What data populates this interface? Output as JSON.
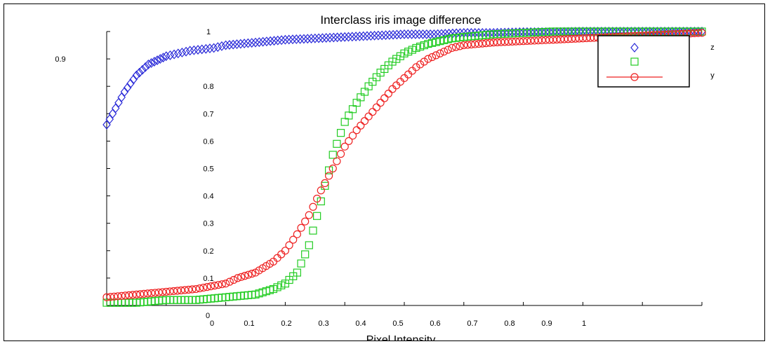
{
  "chart_data": {
    "type": "scatter",
    "title": "Interclass iris image difference",
    "xlabel": "Pixel Intensity",
    "ylabel": "",
    "xlim": [
      0,
      1
    ],
    "ylim": [
      0,
      1
    ],
    "x_ticks": [
      "0",
      "0.1",
      "0.2",
      "0.3",
      "0.4",
      "0.5",
      "0.6",
      "0.7",
      "0.8",
      "0.9",
      "1"
    ],
    "y_ticks": [
      "0",
      "0.1",
      "0.2",
      "0.3",
      "0.4",
      "0.5",
      "0.6",
      "0.7",
      "0.8",
      "0.9",
      "1"
    ],
    "legend_position": "top-right",
    "series": [
      {
        "name": "z",
        "marker": "diamond",
        "color": "#2a2ad8",
        "x": [
          0,
          0.01,
          0.02,
          0.03,
          0.04,
          0.05,
          0.06,
          0.07,
          0.08,
          0.09,
          0.1,
          0.12,
          0.14,
          0.16,
          0.18,
          0.2,
          0.25,
          0.3,
          0.35,
          0.4,
          0.45,
          0.5,
          0.55,
          0.6,
          0.65,
          0.7,
          0.75,
          0.8,
          0.85,
          0.9,
          0.95,
          1.0
        ],
        "y": [
          0.66,
          0.7,
          0.74,
          0.78,
          0.81,
          0.84,
          0.86,
          0.88,
          0.89,
          0.9,
          0.91,
          0.92,
          0.93,
          0.935,
          0.94,
          0.95,
          0.96,
          0.97,
          0.975,
          0.98,
          0.985,
          0.99,
          0.99,
          0.995,
          0.995,
          0.998,
          0.998,
          1.0,
          1.0,
          1.0,
          1.0,
          1.0
        ]
      },
      {
        "name": "",
        "marker": "square",
        "color": "#22cc22",
        "x": [
          0,
          0.05,
          0.1,
          0.15,
          0.2,
          0.25,
          0.28,
          0.3,
          0.32,
          0.34,
          0.36,
          0.38,
          0.4,
          0.42,
          0.44,
          0.46,
          0.48,
          0.5,
          0.52,
          0.54,
          0.56,
          0.58,
          0.6,
          0.65,
          0.7,
          0.75,
          0.8,
          0.85,
          0.9,
          0.95,
          1.0
        ],
        "y": [
          0.01,
          0.01,
          0.02,
          0.02,
          0.03,
          0.04,
          0.06,
          0.08,
          0.12,
          0.22,
          0.38,
          0.55,
          0.67,
          0.74,
          0.8,
          0.85,
          0.89,
          0.92,
          0.94,
          0.955,
          0.965,
          0.975,
          0.98,
          0.99,
          0.995,
          1.0,
          1.0,
          1.0,
          1.0,
          1.0,
          1.0
        ]
      },
      {
        "name": "y",
        "marker": "circle",
        "color": "#ee2222",
        "x": [
          0,
          0.05,
          0.1,
          0.15,
          0.2,
          0.22,
          0.25,
          0.28,
          0.3,
          0.32,
          0.34,
          0.36,
          0.38,
          0.4,
          0.42,
          0.44,
          0.46,
          0.48,
          0.5,
          0.52,
          0.54,
          0.56,
          0.58,
          0.6,
          0.65,
          0.7,
          0.75,
          0.8,
          0.85,
          0.9,
          0.95,
          1.0
        ],
        "y": [
          0.03,
          0.04,
          0.05,
          0.06,
          0.08,
          0.1,
          0.12,
          0.16,
          0.2,
          0.26,
          0.33,
          0.42,
          0.5,
          0.58,
          0.64,
          0.69,
          0.74,
          0.79,
          0.83,
          0.87,
          0.9,
          0.92,
          0.94,
          0.95,
          0.96,
          0.965,
          0.97,
          0.975,
          0.98,
          0.985,
          0.99,
          0.995
        ]
      }
    ]
  }
}
